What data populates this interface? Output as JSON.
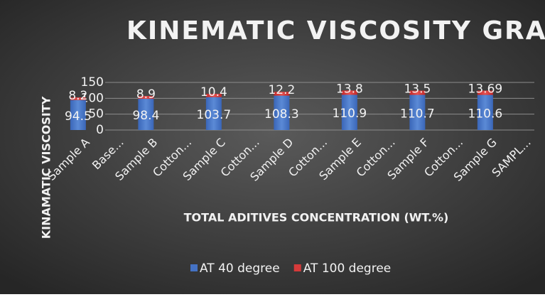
{
  "chart_data": {
    "type": "stacked_bar",
    "title": "KINEMATIC VISCOSITY GRAPH",
    "x_label": "TOTAL ADITIVES CONCENTRATION (WT.%)",
    "y_label": "KINAMATIC VISCOSITY",
    "categories": [
      "Sample A",
      "Base...",
      "Sample B",
      "Cotton...",
      "Sample C",
      "Cotton...",
      "Sample D",
      "Cotton...",
      "Sample E",
      "Cotton...",
      "Sample F",
      "Cotton...",
      "Sample G",
      "SAMPL..."
    ],
    "series": [
      {
        "name": "AT 40 degree",
        "color": "#4472c4",
        "values": [
          94.5,
          null,
          98.4,
          null,
          103.7,
          null,
          108.3,
          null,
          110.9,
          null,
          110.7,
          null,
          110.6,
          null
        ]
      },
      {
        "name": "AT 100 degree",
        "color": "#d63a3a",
        "values": [
          8.2,
          null,
          8.9,
          null,
          10.4,
          null,
          12.2,
          null,
          13.8,
          null,
          13.5,
          null,
          13.69,
          null
        ]
      }
    ],
    "ylim": [
      0,
      150
    ],
    "yticks": [
      0,
      50,
      100,
      150
    ],
    "grid": true,
    "legend": "bottom"
  }
}
